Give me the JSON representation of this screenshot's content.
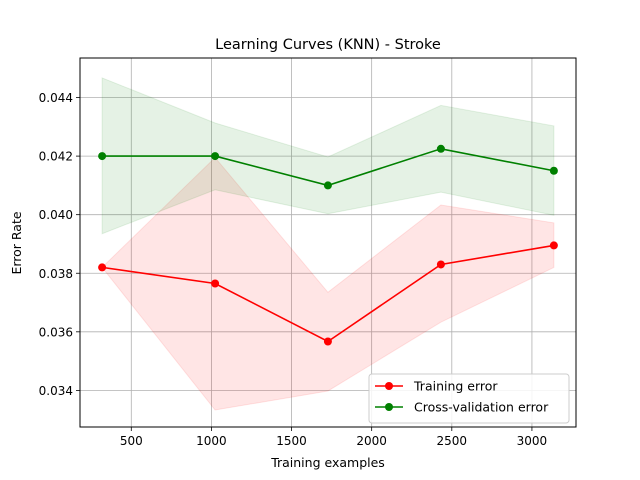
{
  "chart_data": {
    "type": "line",
    "title": "Learning Curves (KNN) - Stroke",
    "xlabel": "Training examples",
    "ylabel": "Error Rate",
    "xlim": [
      180,
      3275
    ],
    "ylim": [
      0.03275,
      0.04535
    ],
    "xticks": [
      500,
      1000,
      1500,
      2000,
      2500,
      3000
    ],
    "yticks": [
      0.034,
      0.036,
      0.038,
      0.04,
      0.042,
      0.044
    ],
    "ytick_labels": [
      "0.034",
      "0.036",
      "0.038",
      "0.040",
      "0.042",
      "0.044"
    ],
    "grid": true,
    "legend_position": "lower-right",
    "x": [
      318,
      1023,
      1727,
      2432,
      3137
    ],
    "series": [
      {
        "name": "Training error",
        "color": "#ff0000",
        "band_color": "#ff0000",
        "values": [
          0.0382,
          0.03765,
          0.03567,
          0.0383,
          0.03895
        ],
        "band_lower": [
          0.0382,
          0.03333,
          0.03398,
          0.03633,
          0.0382
        ],
        "band_upper": [
          0.0382,
          0.04195,
          0.03735,
          0.04033,
          0.03972
        ]
      },
      {
        "name": "Cross-validation error",
        "color": "#008000",
        "band_color": "#008000",
        "values": [
          0.042,
          0.042,
          0.041,
          0.04225,
          0.0415
        ],
        "band_lower": [
          0.03935,
          0.04085,
          0.04003,
          0.04077,
          0.03998
        ],
        "band_upper": [
          0.04467,
          0.04313,
          0.04197,
          0.04373,
          0.04303
        ]
      }
    ]
  }
}
